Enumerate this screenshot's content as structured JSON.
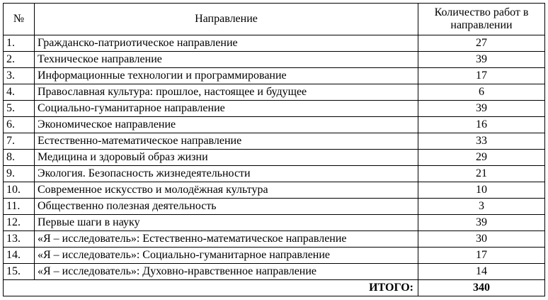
{
  "headers": {
    "num": "№",
    "direction": "Направление",
    "count": "Количество работ в направлении"
  },
  "rows": [
    {
      "num": "1.",
      "direction": "Гражданско-патриотическое направление",
      "count": "27"
    },
    {
      "num": "2.",
      "direction": "Техническое направление",
      "count": "39"
    },
    {
      "num": "3.",
      "direction": "Информационные технологии и программирование",
      "count": "17"
    },
    {
      "num": "4.",
      "direction": "Православная культура: прошлое, настоящее и будущее",
      "count": "6"
    },
    {
      "num": "5.",
      "direction": "Социально-гуманитарное направление",
      "count": "39"
    },
    {
      "num": "6.",
      "direction": "Экономическое направление",
      "count": "16"
    },
    {
      "num": "7.",
      "direction": "Естественно-математическое направление",
      "count": "33"
    },
    {
      "num": "8.",
      "direction": "Медицина и здоровый образ жизни",
      "count": "29"
    },
    {
      "num": "9.",
      "direction": "Экология. Безопасность жизнедеятельности",
      "count": "21"
    },
    {
      "num": "10.",
      "direction": "Современное искусство и молодёжная культура",
      "count": "10"
    },
    {
      "num": "11.",
      "direction": "Общественно полезная деятельность",
      "count": "3"
    },
    {
      "num": "12.",
      "direction": "Первые шаги в науку",
      "count": "39"
    },
    {
      "num": "13.",
      "direction": "«Я – исследователь»: Естественно-математическое направление",
      "count": "30"
    },
    {
      "num": "14.",
      "direction": "«Я – исследователь»: Социально-гуманитарное направление",
      "count": "17"
    },
    {
      "num": "15.",
      "direction": "«Я – исследователь»: Духовно-нравственное направление",
      "count": "14"
    }
  ],
  "total": {
    "label": "ИТОГО:",
    "value": "340"
  }
}
